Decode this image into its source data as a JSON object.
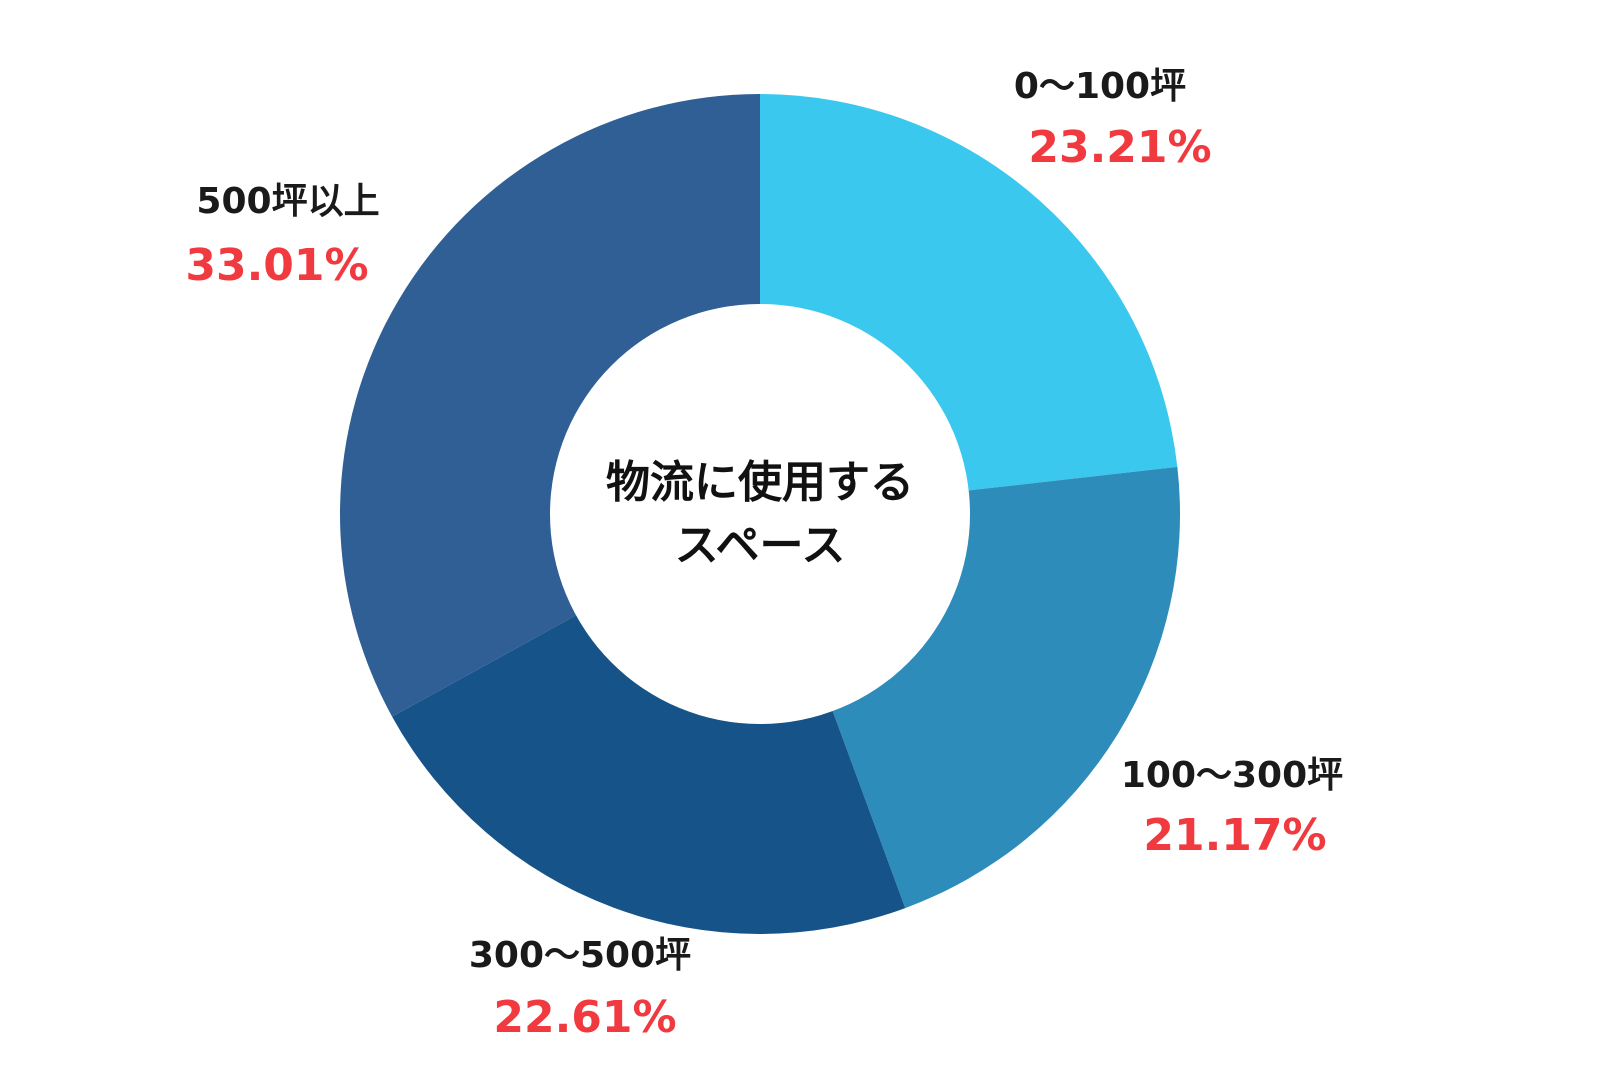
{
  "chart_data": {
    "type": "pie",
    "donut": true,
    "center_title_lines": [
      "物流に使用する",
      "スペース"
    ],
    "categories": [
      "0～100坪",
      "100～300坪",
      "300～500坪",
      "500坪以上"
    ],
    "values": [
      23.21,
      21.17,
      22.61,
      33.01
    ],
    "value_labels": [
      "23.21%",
      "21.17%",
      "22.61%",
      "33.01%"
    ],
    "colors": [
      "#3bc8ef",
      "#2e8cbb",
      "#165389",
      "#2f5f95"
    ],
    "value_color": "#f03a3f",
    "start": "12 o'clock",
    "direction": "clockwise"
  }
}
